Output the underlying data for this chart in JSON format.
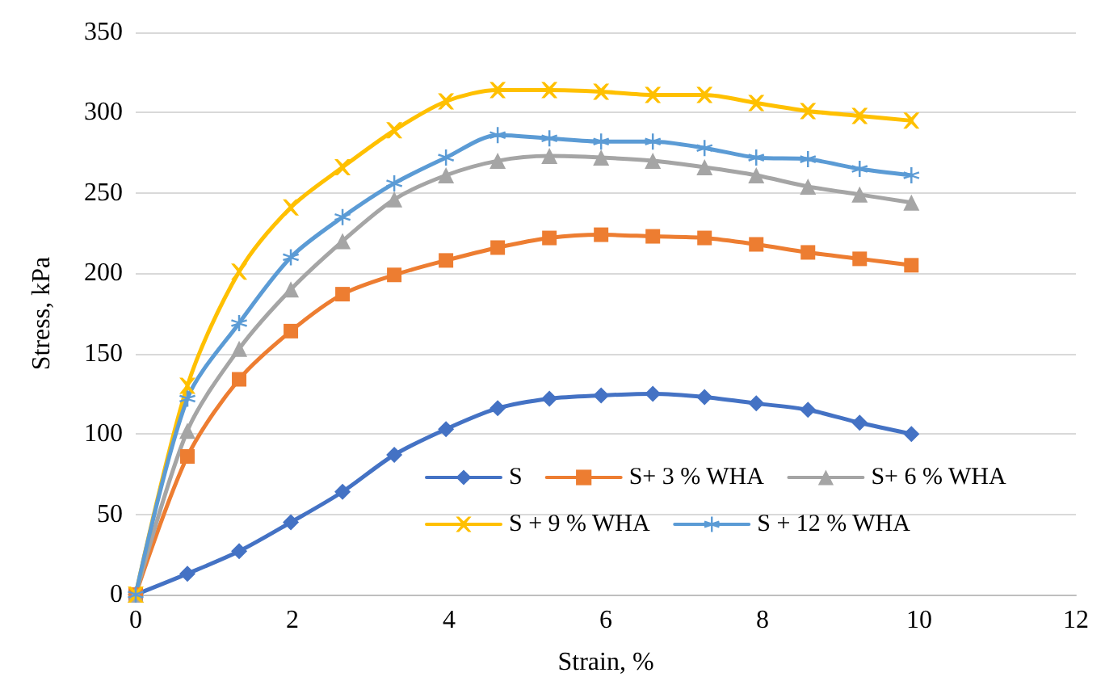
{
  "chart_data": {
    "type": "line",
    "xlabel": "Strain, %",
    "ylabel": "Stress, kPa",
    "x": [
      0,
      0.66,
      1.32,
      1.98,
      2.64,
      3.3,
      3.96,
      4.62,
      5.28,
      5.94,
      6.6,
      7.26,
      7.92,
      8.58,
      9.24,
      9.9
    ],
    "xlim": [
      0,
      12
    ],
    "xticks": [
      0,
      2,
      4,
      6,
      8,
      10,
      12
    ],
    "ylim": [
      0,
      350
    ],
    "yticks": [
      0,
      50,
      100,
      150,
      200,
      250,
      300,
      350
    ],
    "grid": "y",
    "legend": "bottom right",
    "line_style": "solid",
    "series": [
      {
        "name": "S",
        "color": "#4472c4",
        "marker": "diamond",
        "values": [
          0,
          13,
          27,
          45,
          64,
          87,
          103,
          116,
          122,
          124,
          125,
          123,
          119,
          115,
          107,
          100
        ]
      },
      {
        "name": "S+ 3 % WHA",
        "color": "#ed7d31",
        "marker": "square",
        "values": [
          0,
          86,
          134,
          164,
          187,
          199,
          208,
          216,
          222,
          224,
          223,
          222,
          218,
          213,
          209,
          205
        ]
      },
      {
        "name": "S+ 6 % WHA",
        "color": "#a5a5a5",
        "marker": "triangle",
        "values": [
          0,
          102,
          153,
          190,
          220,
          246,
          261,
          270,
          273,
          272,
          270,
          266,
          261,
          254,
          249,
          244
        ]
      },
      {
        "name": "S + 9 % WHA",
        "color": "#ffc000",
        "marker": "cross",
        "values": [
          0,
          130,
          201,
          241,
          266,
          289,
          307,
          314,
          314,
          313,
          311,
          311,
          306,
          301,
          298,
          295
        ]
      },
      {
        "name": "S + 12 % WHA",
        "color": "#5b9bd5",
        "marker": "star",
        "values": [
          0,
          122,
          169,
          210,
          235,
          256,
          272,
          286,
          284,
          282,
          282,
          278,
          272,
          271,
          265,
          261
        ]
      }
    ]
  }
}
